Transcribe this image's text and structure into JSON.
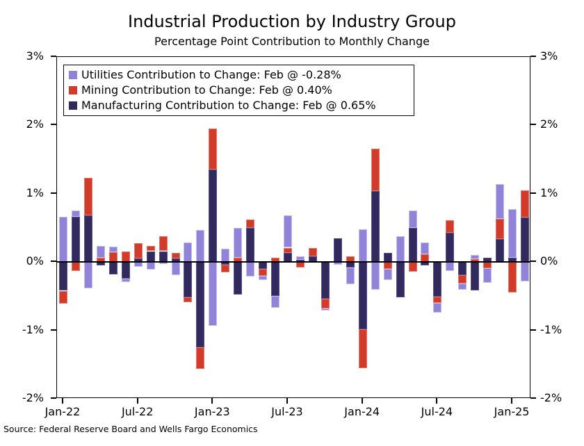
{
  "title": "Industrial Production by Industry Group",
  "subtitle": "Percentage Point Contribution to Monthly Change",
  "source": "Source: Federal Reserve Board and Wells Fargo Economics",
  "colors": {
    "utilities": "#9184d8",
    "mining": "#d23b2a",
    "manufacturing": "#32295c"
  },
  "legend": [
    {
      "series": "utilities",
      "label": "Utilities Contribution to Change: Feb @ -0.28%"
    },
    {
      "series": "mining",
      "label": "Mining Contribution to Change: Feb @ 0.40%"
    },
    {
      "series": "manufacturing",
      "label": "Manufacturing Contribution to Change: Feb @ 0.65%"
    }
  ],
  "chart_data": {
    "type": "bar",
    "stacked": true,
    "grid": false,
    "legend_position": "top-left",
    "ylim": [
      -2,
      3
    ],
    "yticks": [
      "3%",
      "2%",
      "1%",
      "0%",
      "-1%",
      "-2%"
    ],
    "ytick_values": [
      3,
      2,
      1,
      0,
      -1,
      -2
    ],
    "xticks": [
      "Jan-22",
      "Jul-22",
      "Jan-23",
      "Jul-23",
      "Jan-24",
      "Jul-24",
      "Jan-25"
    ],
    "xtick_month_indexes": [
      0,
      6,
      12,
      18,
      24,
      30,
      36
    ],
    "categories": [
      "Jan-22",
      "Feb-22",
      "Mar-22",
      "Apr-22",
      "May-22",
      "Jun-22",
      "Jul-22",
      "Aug-22",
      "Sep-22",
      "Oct-22",
      "Nov-22",
      "Dec-22",
      "Jan-23",
      "Feb-23",
      "Mar-23",
      "Apr-23",
      "May-23",
      "Jun-23",
      "Jul-23",
      "Aug-23",
      "Sep-23",
      "Oct-23",
      "Nov-23",
      "Dec-23",
      "Jan-24",
      "Feb-24",
      "Mar-24",
      "Apr-24",
      "May-24",
      "Jun-24",
      "Jul-24",
      "Aug-24",
      "Sep-24",
      "Oct-24",
      "Nov-24",
      "Dec-24",
      "Jan-25",
      "Feb-25"
    ],
    "series": [
      {
        "name": "Utilities",
        "key": "utilities",
        "values": [
          0.66,
          0.09,
          -0.38,
          0.18,
          0.09,
          -0.05,
          -0.07,
          -0.11,
          -0.03,
          -0.19,
          0.29,
          0.47,
          -0.93,
          0.2,
          0.44,
          -0.21,
          -0.06,
          -0.17,
          0.47,
          0.05,
          0.0,
          -0.03,
          -0.04,
          -0.24,
          0.48,
          -0.4,
          -0.16,
          0.38,
          0.25,
          0.18,
          -0.14,
          -0.13,
          -0.09,
          0.06,
          -0.21,
          0.51,
          0.71,
          -0.28
        ]
      },
      {
        "name": "Mining",
        "key": "mining",
        "values": [
          -0.19,
          -0.13,
          0.55,
          0.06,
          0.14,
          0.15,
          0.23,
          0.08,
          0.22,
          0.08,
          -0.07,
          -0.31,
          0.6,
          -0.11,
          0.06,
          0.12,
          -0.1,
          0.06,
          0.08,
          -0.08,
          0.13,
          -0.14,
          0.0,
          0.08,
          -0.57,
          0.62,
          -0.1,
          0.0,
          -0.14,
          0.11,
          -0.09,
          0.18,
          -0.12,
          0.04,
          -0.09,
          0.29,
          -0.45,
          0.4
        ]
      },
      {
        "name": "Manufacturing",
        "key": "manufacturing",
        "values": [
          -0.42,
          0.66,
          0.68,
          -0.05,
          -0.18,
          -0.24,
          0.05,
          0.16,
          0.16,
          0.05,
          -0.52,
          -1.25,
          1.35,
          -0.04,
          -0.48,
          0.5,
          -0.1,
          -0.5,
          0.13,
          0.03,
          0.08,
          -0.54,
          0.35,
          -0.08,
          -0.98,
          1.04,
          0.13,
          -0.52,
          0.5,
          -0.05,
          -0.51,
          0.43,
          -0.19,
          -0.42,
          0.06,
          0.34,
          0.06,
          0.65
        ]
      }
    ]
  }
}
